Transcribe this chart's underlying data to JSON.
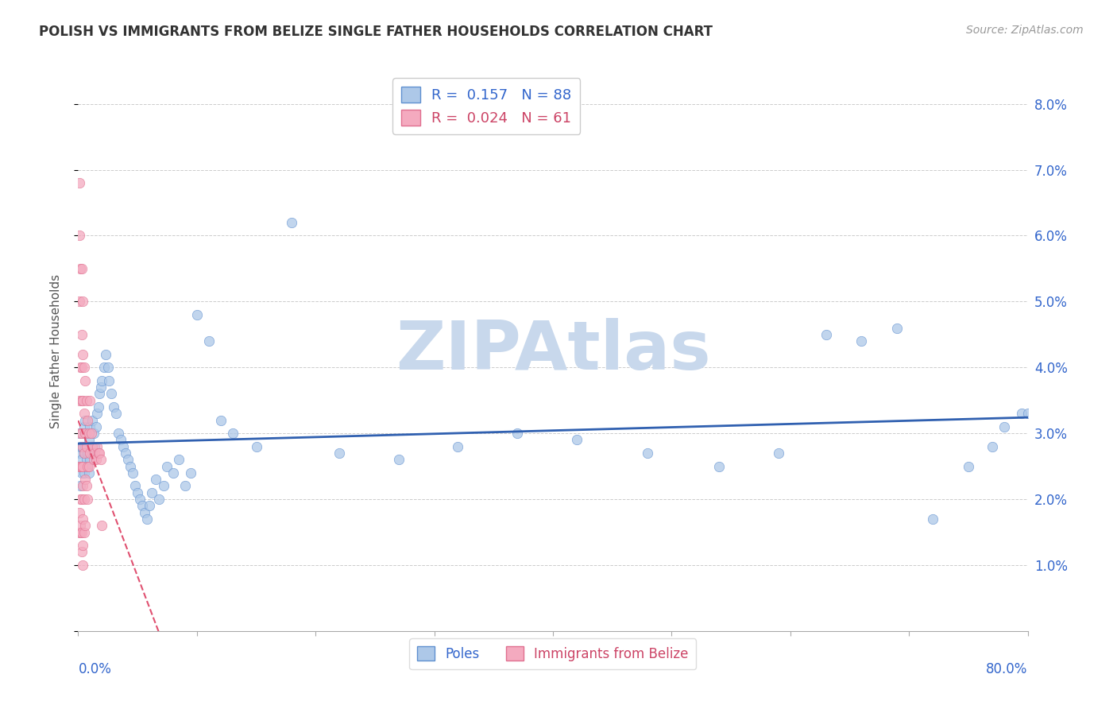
{
  "title": "POLISH VS IMMIGRANTS FROM BELIZE SINGLE FATHER HOUSEHOLDS CORRELATION CHART",
  "source": "Source: ZipAtlas.com",
  "ylabel": "Single Father Households",
  "poles_R": 0.157,
  "poles_N": 88,
  "belize_R": 0.024,
  "belize_N": 61,
  "poles_color": "#adc8e8",
  "belize_color": "#f4aabf",
  "poles_edge_color": "#6090d0",
  "belize_edge_color": "#e07090",
  "poles_line_color": "#3060b0",
  "belize_line_color": "#e05070",
  "watermark": "ZIPAtlas",
  "watermark_color": "#c8d8ec",
  "xlim": [
    0.0,
    0.8
  ],
  "ylim": [
    0.0,
    0.085
  ],
  "yticks": [
    0.0,
    0.01,
    0.02,
    0.03,
    0.04,
    0.05,
    0.06,
    0.07,
    0.08
  ],
  "ytick_labels": [
    "",
    "1.0%",
    "2.0%",
    "3.0%",
    "4.0%",
    "5.0%",
    "6.0%",
    "7.0%",
    "8.0%"
  ],
  "poles_x": [
    0.001,
    0.001,
    0.002,
    0.002,
    0.002,
    0.003,
    0.003,
    0.003,
    0.004,
    0.004,
    0.005,
    0.005,
    0.005,
    0.006,
    0.006,
    0.006,
    0.007,
    0.007,
    0.008,
    0.008,
    0.009,
    0.009,
    0.01,
    0.01,
    0.011,
    0.012,
    0.012,
    0.013,
    0.014,
    0.015,
    0.016,
    0.017,
    0.018,
    0.019,
    0.02,
    0.022,
    0.023,
    0.025,
    0.026,
    0.028,
    0.03,
    0.032,
    0.034,
    0.036,
    0.038,
    0.04,
    0.042,
    0.044,
    0.046,
    0.048,
    0.05,
    0.052,
    0.054,
    0.056,
    0.058,
    0.06,
    0.062,
    0.065,
    0.068,
    0.072,
    0.075,
    0.08,
    0.085,
    0.09,
    0.095,
    0.1,
    0.11,
    0.12,
    0.13,
    0.15,
    0.18,
    0.22,
    0.27,
    0.32,
    0.37,
    0.42,
    0.48,
    0.54,
    0.59,
    0.63,
    0.66,
    0.69,
    0.72,
    0.75,
    0.77,
    0.78,
    0.795,
    0.8
  ],
  "poles_y": [
    0.03,
    0.027,
    0.028,
    0.025,
    0.022,
    0.026,
    0.024,
    0.028,
    0.025,
    0.03,
    0.024,
    0.027,
    0.031,
    0.025,
    0.028,
    0.032,
    0.026,
    0.03,
    0.025,
    0.027,
    0.024,
    0.029,
    0.026,
    0.031,
    0.028,
    0.027,
    0.032,
    0.03,
    0.028,
    0.031,
    0.033,
    0.034,
    0.036,
    0.037,
    0.038,
    0.04,
    0.042,
    0.04,
    0.038,
    0.036,
    0.034,
    0.033,
    0.03,
    0.029,
    0.028,
    0.027,
    0.026,
    0.025,
    0.024,
    0.022,
    0.021,
    0.02,
    0.019,
    0.018,
    0.017,
    0.019,
    0.021,
    0.023,
    0.02,
    0.022,
    0.025,
    0.024,
    0.026,
    0.022,
    0.024,
    0.048,
    0.044,
    0.032,
    0.03,
    0.028,
    0.062,
    0.027,
    0.026,
    0.028,
    0.03,
    0.029,
    0.027,
    0.025,
    0.027,
    0.045,
    0.044,
    0.046,
    0.017,
    0.025,
    0.028,
    0.031,
    0.033,
    0.033
  ],
  "belize_x": [
    0.001,
    0.001,
    0.001,
    0.001,
    0.001,
    0.001,
    0.001,
    0.002,
    0.002,
    0.002,
    0.002,
    0.002,
    0.002,
    0.002,
    0.003,
    0.003,
    0.003,
    0.003,
    0.003,
    0.003,
    0.003,
    0.003,
    0.003,
    0.004,
    0.004,
    0.004,
    0.004,
    0.004,
    0.004,
    0.004,
    0.004,
    0.004,
    0.005,
    0.005,
    0.005,
    0.005,
    0.005,
    0.006,
    0.006,
    0.006,
    0.006,
    0.007,
    0.007,
    0.007,
    0.008,
    0.008,
    0.008,
    0.009,
    0.009,
    0.01,
    0.01,
    0.011,
    0.012,
    0.013,
    0.014,
    0.015,
    0.016,
    0.017,
    0.018,
    0.019,
    0.02
  ],
  "belize_y": [
    0.068,
    0.06,
    0.05,
    0.035,
    0.025,
    0.018,
    0.015,
    0.055,
    0.04,
    0.03,
    0.025,
    0.02,
    0.015,
    0.016,
    0.055,
    0.045,
    0.04,
    0.035,
    0.03,
    0.025,
    0.02,
    0.015,
    0.012,
    0.05,
    0.042,
    0.035,
    0.028,
    0.022,
    0.017,
    0.013,
    0.01,
    0.025,
    0.04,
    0.033,
    0.027,
    0.02,
    0.015,
    0.038,
    0.03,
    0.023,
    0.016,
    0.035,
    0.028,
    0.022,
    0.032,
    0.025,
    0.02,
    0.03,
    0.025,
    0.035,
    0.027,
    0.03,
    0.028,
    0.026,
    0.027,
    0.026,
    0.028,
    0.027,
    0.027,
    0.026,
    0.016
  ]
}
